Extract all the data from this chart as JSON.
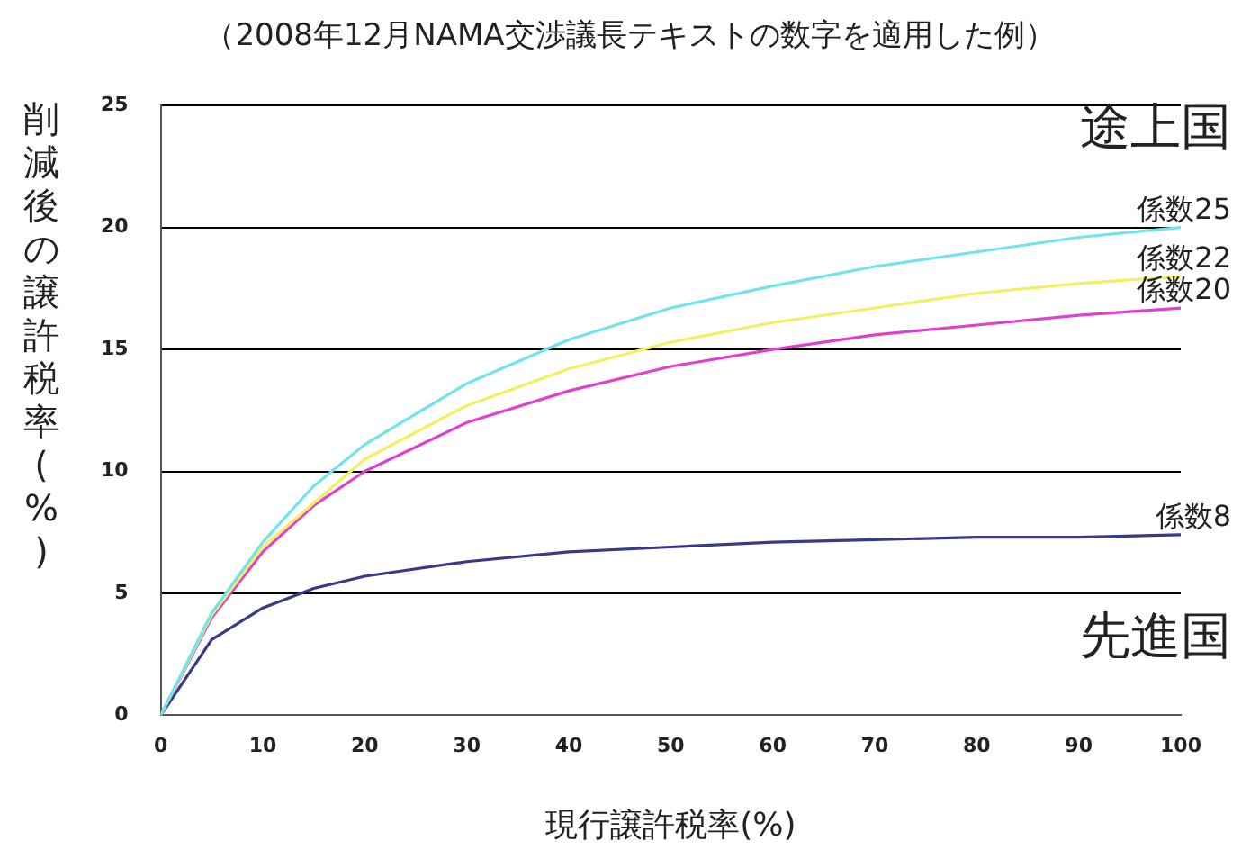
{
  "chart_data": {
    "type": "line",
    "subtitle": "（2008年12月NAMA交渉議長テキストの数字を適用した例）",
    "xlabel": "現行譲許税率(%)",
    "ylabel": "削減後の譲許税率(%)",
    "x": [
      0,
      5,
      10,
      15,
      20,
      30,
      40,
      50,
      60,
      70,
      80,
      90,
      100
    ],
    "series": [
      {
        "name": "係数25",
        "color": "#70e4ec",
        "values": [
          0,
          4.2,
          7.1,
          9.4,
          11.1,
          13.6,
          15.4,
          16.7,
          17.6,
          18.4,
          19.0,
          19.6,
          20.0
        ]
      },
      {
        "name": "係数22",
        "color": "#f2f060",
        "values": [
          0,
          4.1,
          6.9,
          8.7,
          10.5,
          12.7,
          14.2,
          15.3,
          16.1,
          16.7,
          17.3,
          17.7,
          18.0
        ]
      },
      {
        "name": "係数20",
        "color": "#e040d0",
        "values": [
          0,
          4.0,
          6.7,
          8.6,
          10.0,
          12.0,
          13.3,
          14.3,
          15.0,
          15.6,
          16.0,
          16.4,
          16.7
        ]
      },
      {
        "name": "係数8",
        "color": "#383a88",
        "values": [
          0,
          3.1,
          4.4,
          5.2,
          5.7,
          6.3,
          6.7,
          6.9,
          7.1,
          7.2,
          7.3,
          7.3,
          7.4
        ]
      }
    ],
    "annotations": [
      "途上国",
      "先進国"
    ],
    "xlim": [
      0,
      100
    ],
    "xticks": [
      0,
      10,
      20,
      30,
      40,
      50,
      60,
      70,
      80,
      90,
      100
    ],
    "ylim": [
      0,
      25
    ],
    "yticks": [
      0,
      5,
      10,
      15,
      20,
      25
    ],
    "grid": "y",
    "legend": false,
    "marker": "none",
    "line_style": "solid"
  }
}
